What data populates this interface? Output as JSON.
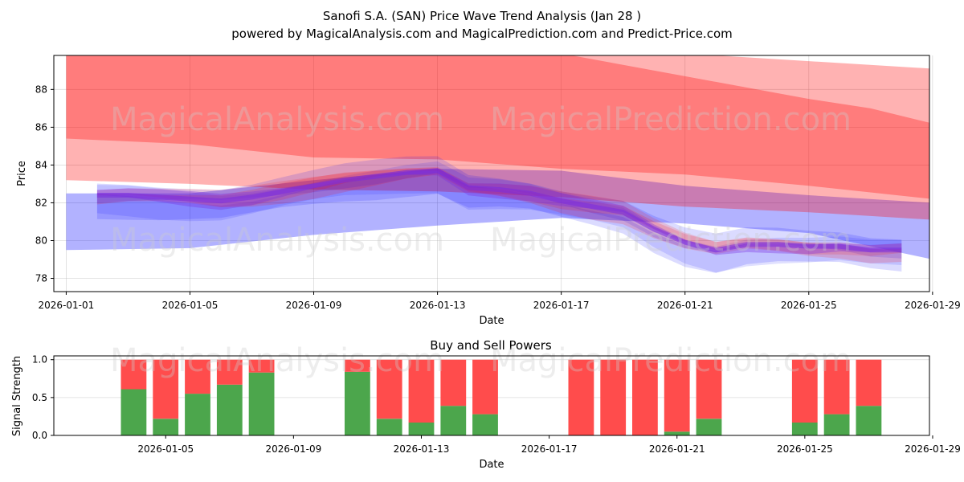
{
  "title_line1": "Sanofi S.A. (SAN) Price Wave Trend Analysis (Jan 28 )",
  "title_line2": "powered by MagicalAnalysis.com and MagicalPrediction.com and Predict-Price.com",
  "watermarks": [
    "MagicalAnalysis.com",
    "MagicalPrediction.com"
  ],
  "colors": {
    "red_band": "#ff0000",
    "blue_band": "#0000ff",
    "purple": "#7a2be0",
    "buy": "#4ca64c",
    "sell": "#ff4c4c"
  },
  "chart_data": [
    {
      "type": "area",
      "xlabel": "Date",
      "ylabel": "Price",
      "ylim": [
        77.3,
        89.8
      ],
      "yticks": [
        78,
        80,
        82,
        84,
        86,
        88
      ],
      "xticks": [
        "2026-01-01",
        "2026-01-05",
        "2026-01-09",
        "2026-01-13",
        "2026-01-17",
        "2026-01-21",
        "2026-01-25",
        "2026-01-29"
      ],
      "xlim_days": [
        0.6,
        28.9
      ],
      "red_bands": [
        {
          "name": "upper wave band",
          "x": [
            1,
            5,
            9,
            13,
            17,
            21,
            25,
            29
          ],
          "low": [
            85.4,
            85.1,
            84.4,
            84.3,
            83.8,
            83.5,
            82.9,
            82.2
          ],
          "high": [
            89.9,
            89.9,
            89.9,
            89.9,
            89.9,
            89.9,
            89.5,
            89.1
          ]
        },
        {
          "name": "middle wave band",
          "x": [
            1,
            5,
            9,
            13,
            17,
            21,
            25,
            27,
            29
          ],
          "low": [
            83.2,
            83.0,
            82.7,
            82.6,
            82.3,
            81.8,
            81.5,
            81.3,
            81.1
          ],
          "high": [
            89.9,
            89.9,
            89.9,
            89.9,
            89.9,
            88.7,
            87.5,
            87.0,
            86.2
          ]
        }
      ],
      "blue_band": {
        "name": "lower wave band",
        "x": [
          1,
          5,
          9,
          13,
          17,
          21,
          25,
          29
        ],
        "low": [
          79.5,
          79.6,
          80.3,
          80.8,
          81.2,
          80.9,
          80.4,
          79.0
        ],
        "high": [
          82.5,
          82.5,
          83.2,
          83.8,
          83.7,
          82.9,
          82.4,
          82.0
        ]
      },
      "price_path": {
        "x": [
          2,
          3,
          4,
          5,
          6,
          7,
          8,
          9,
          10,
          11,
          12,
          13,
          14,
          15,
          16,
          17,
          18,
          19,
          20,
          21,
          22,
          23,
          24,
          25,
          26,
          27,
          28
        ],
        "y": [
          82.4,
          82.4,
          82.3,
          82.2,
          82.1,
          82.3,
          82.6,
          82.9,
          83.2,
          83.4,
          83.6,
          83.7,
          82.8,
          82.7,
          82.5,
          82.1,
          81.8,
          81.5,
          80.6,
          79.9,
          79.5,
          79.8,
          79.8,
          79.7,
          79.7,
          79.5,
          79.5
        ]
      }
    },
    {
      "type": "bar",
      "title": "Buy and Sell Powers",
      "xlabel": "Date",
      "ylabel": "Signal Strength",
      "ylim": [
        0,
        1.05
      ],
      "yticks": [
        "0.0",
        "0.5",
        "1.0"
      ],
      "xticks": [
        "2026-01-05",
        "2026-01-09",
        "2026-01-13",
        "2026-01-17",
        "2026-01-21",
        "2026-01-25",
        "2026-01-29"
      ],
      "xlim_days": [
        1.5,
        28.9
      ],
      "series": [
        {
          "name": "Buy",
          "days": [
            4,
            5,
            6,
            7,
            8,
            11,
            12,
            13,
            14,
            15,
            18,
            19,
            20,
            21,
            22,
            25,
            26,
            27
          ],
          "values": [
            0.61,
            0.22,
            0.55,
            0.67,
            0.83,
            0.84,
            0.22,
            0.17,
            0.39,
            0.28,
            0.0,
            0.0,
            0.0,
            0.05,
            0.22,
            0.17,
            0.28,
            0.39
          ]
        },
        {
          "name": "Sell",
          "days": [
            4,
            5,
            6,
            7,
            8,
            11,
            12,
            13,
            14,
            15,
            18,
            19,
            20,
            21,
            22,
            25,
            26,
            27
          ],
          "values": [
            0.39,
            0.78,
            0.45,
            0.33,
            0.17,
            0.16,
            0.78,
            0.83,
            0.61,
            0.72,
            1.0,
            1.0,
            1.0,
            0.95,
            0.78,
            0.83,
            0.72,
            0.61
          ]
        }
      ]
    }
  ]
}
